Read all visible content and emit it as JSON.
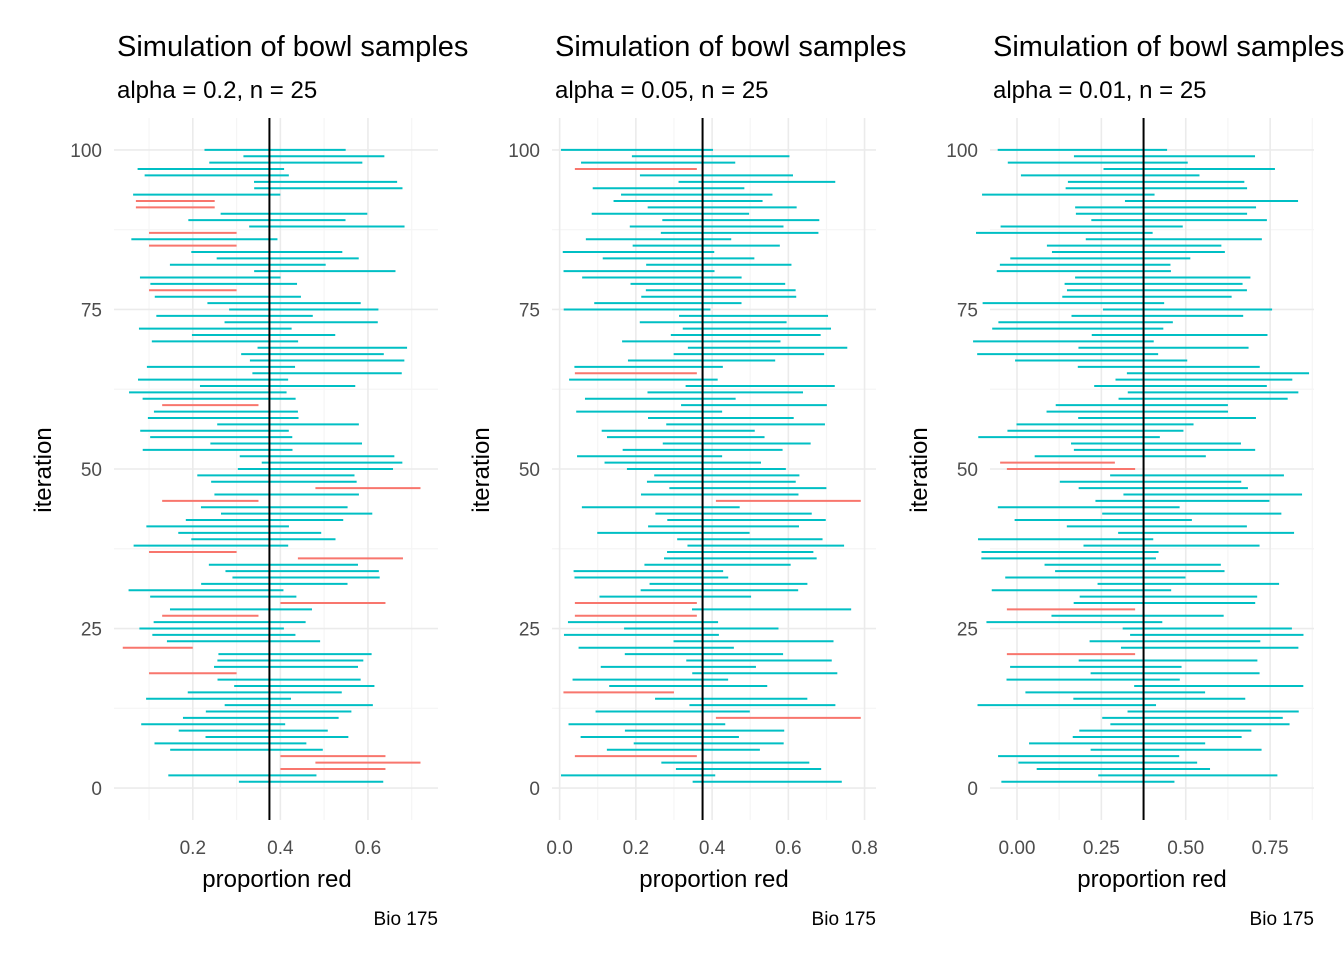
{
  "colors": {
    "captured": "#00BFC4",
    "missed": "#F8766D",
    "true_line": "#000000",
    "grid_major": "#EBEBEB",
    "grid_minor": "#F5F5F5"
  },
  "chart_data": [
    {
      "type": "interval",
      "title": "Simulation of bowl samples",
      "subtitle": "alpha = 0.2, n = 25",
      "xlabel": "proportion red",
      "ylabel": "iteration",
      "caption": "Bio 175",
      "true_value": 0.375,
      "xlim": [
        0.02,
        0.76
      ],
      "ylim": [
        -5,
        105
      ],
      "xticks": [
        0.2,
        0.4,
        0.6
      ],
      "xtick_labels": [
        "0.2",
        "0.4",
        "0.6"
      ],
      "yticks": [
        0,
        25,
        50,
        75,
        100
      ],
      "ytick_labels": [
        "0",
        "25",
        "50",
        "75",
        "100"
      ],
      "grid": true,
      "missed_intervals": [
        {
          "iteration": 3,
          "lower": 0.4,
          "upper": 0.64
        },
        {
          "iteration": 4,
          "lower": 0.48,
          "upper": 0.72
        },
        {
          "iteration": 5,
          "lower": 0.4,
          "upper": 0.64
        },
        {
          "iteration": 18,
          "lower": 0.1,
          "upper": 0.3
        },
        {
          "iteration": 22,
          "lower": 0.04,
          "upper": 0.2
        },
        {
          "iteration": 27,
          "lower": 0.13,
          "upper": 0.35
        },
        {
          "iteration": 29,
          "lower": 0.4,
          "upper": 0.64
        },
        {
          "iteration": 36,
          "lower": 0.44,
          "upper": 0.68
        },
        {
          "iteration": 37,
          "lower": 0.1,
          "upper": 0.3
        },
        {
          "iteration": 45,
          "lower": 0.13,
          "upper": 0.35
        },
        {
          "iteration": 47,
          "lower": 0.48,
          "upper": 0.72
        },
        {
          "iteration": 60,
          "lower": 0.13,
          "upper": 0.35
        },
        {
          "iteration": 78,
          "lower": 0.1,
          "upper": 0.3
        },
        {
          "iteration": 85,
          "lower": 0.1,
          "upper": 0.3
        },
        {
          "iteration": 87,
          "lower": 0.1,
          "upper": 0.3
        },
        {
          "iteration": 91,
          "lower": 0.07,
          "upper": 0.25
        },
        {
          "iteration": 92,
          "lower": 0.07,
          "upper": 0.25
        }
      ],
      "captured_interval_count": 84
    },
    {
      "type": "interval",
      "title": "Simulation of bowl samples",
      "subtitle": "alpha = 0.05, n = 25",
      "xlabel": "proportion red",
      "ylabel": "iteration",
      "caption": "Bio 175",
      "true_value": 0.375,
      "xlim": [
        -0.02,
        0.83
      ],
      "ylim": [
        -5,
        105
      ],
      "xticks": [
        0.0,
        0.2,
        0.4,
        0.6,
        0.8
      ],
      "xtick_labels": [
        "0.0",
        "0.2",
        "0.4",
        "0.6",
        "0.8"
      ],
      "yticks": [
        0,
        25,
        50,
        75,
        100
      ],
      "ytick_labels": [
        "0",
        "25",
        "50",
        "75",
        "100"
      ],
      "grid": true,
      "missed_intervals": [
        {
          "iteration": 5,
          "lower": 0.04,
          "upper": 0.36
        },
        {
          "iteration": 11,
          "lower": 0.41,
          "upper": 0.79
        },
        {
          "iteration": 15,
          "lower": 0.01,
          "upper": 0.3
        },
        {
          "iteration": 27,
          "lower": 0.04,
          "upper": 0.36
        },
        {
          "iteration": 29,
          "lower": 0.04,
          "upper": 0.36
        },
        {
          "iteration": 45,
          "lower": 0.41,
          "upper": 0.79
        },
        {
          "iteration": 65,
          "lower": 0.04,
          "upper": 0.36
        },
        {
          "iteration": 97,
          "lower": 0.04,
          "upper": 0.36
        }
      ],
      "captured_interval_count": 93
    },
    {
      "type": "interval",
      "title": "Simulation of bowl samples",
      "subtitle": "alpha = 0.01, n = 25",
      "xlabel": "proportion red",
      "ylabel": "iteration",
      "caption": "Bio 175",
      "true_value": 0.375,
      "xlim": [
        -0.08,
        0.88
      ],
      "ylim": [
        -5,
        105
      ],
      "xticks": [
        0.0,
        0.25,
        0.5,
        0.75
      ],
      "xtick_labels": [
        "0.00",
        "0.25",
        "0.50",
        "0.75"
      ],
      "yticks": [
        0,
        25,
        50,
        75,
        100
      ],
      "ytick_labels": [
        "0",
        "25",
        "50",
        "75",
        "100"
      ],
      "grid": true,
      "missed_intervals": [
        {
          "iteration": 21,
          "lower": -0.03,
          "upper": 0.35
        },
        {
          "iteration": 28,
          "lower": -0.03,
          "upper": 0.35
        },
        {
          "iteration": 50,
          "lower": -0.03,
          "upper": 0.35
        },
        {
          "iteration": 51,
          "lower": -0.05,
          "upper": 0.29
        }
      ],
      "captured_interval_count": 97
    }
  ]
}
